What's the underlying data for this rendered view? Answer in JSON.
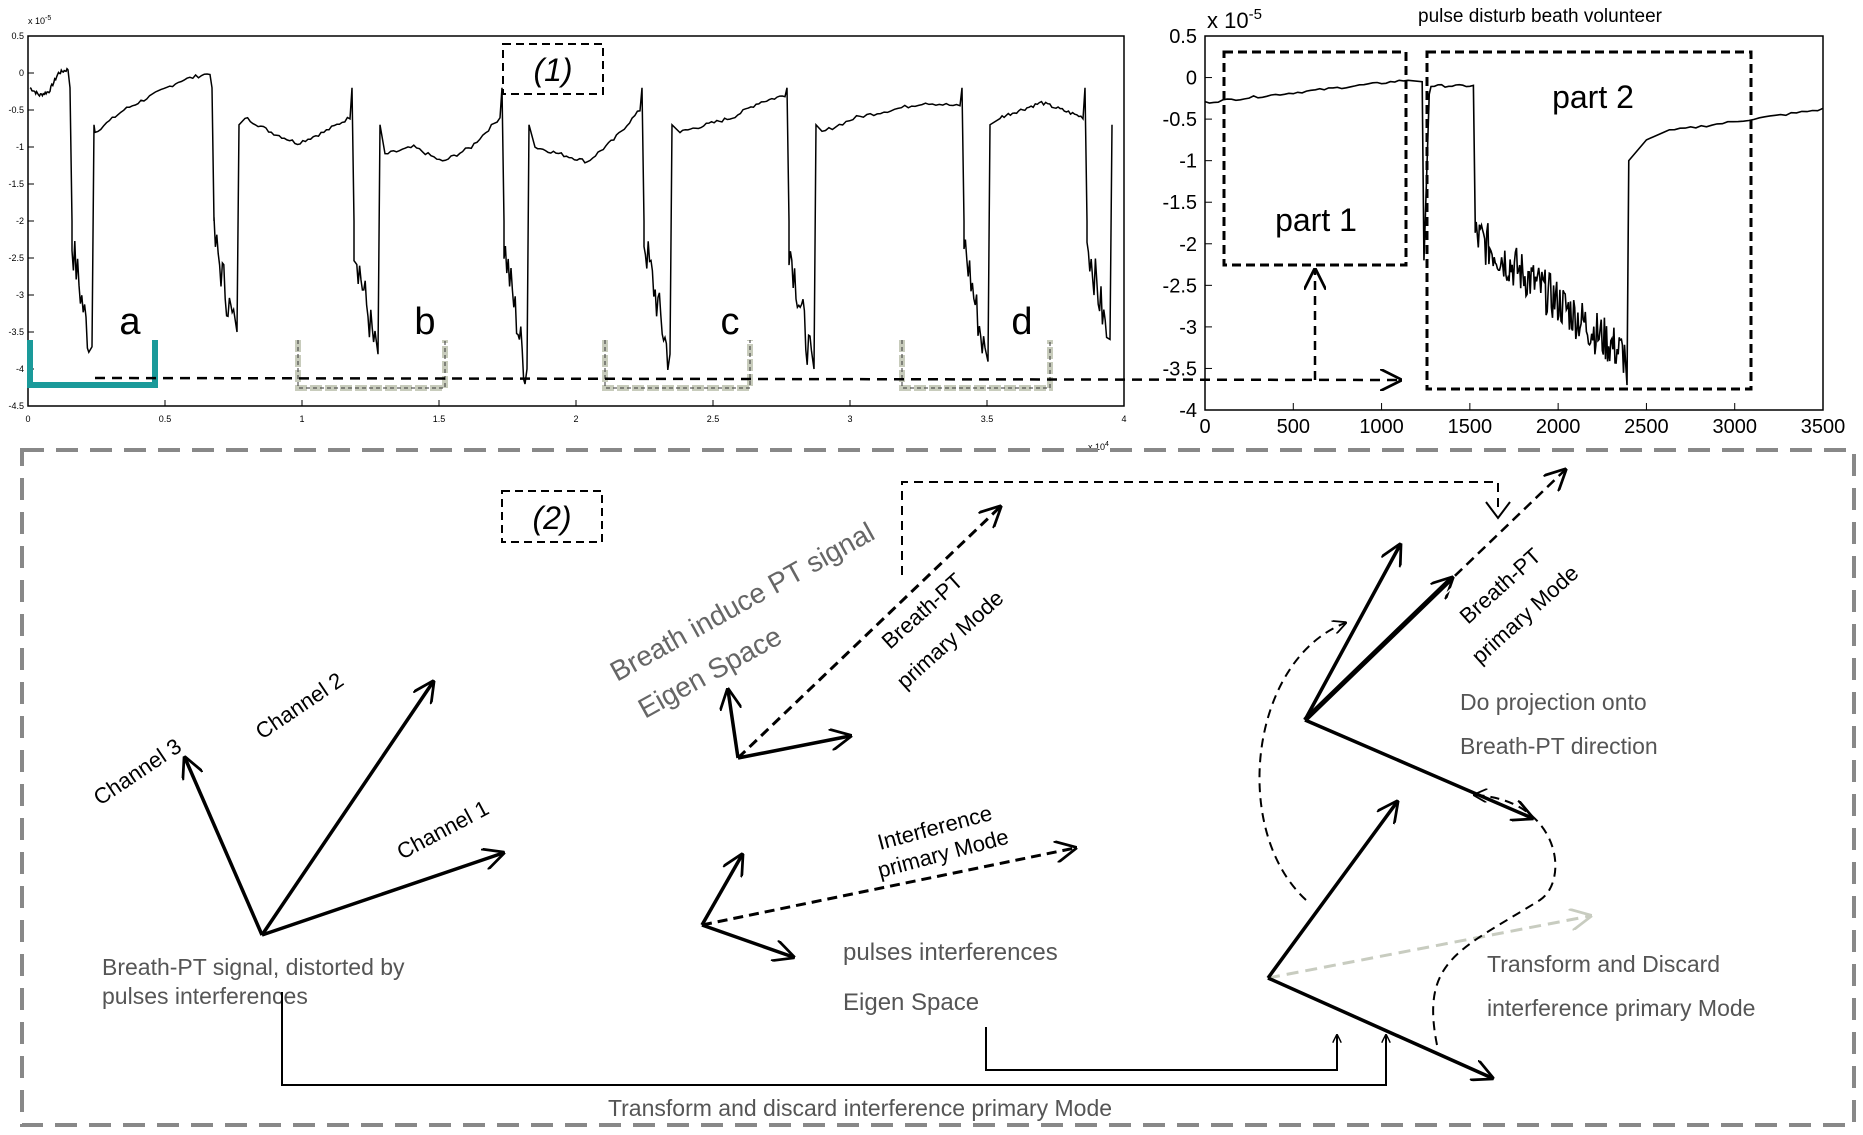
{
  "panel1": {
    "label": "(1)",
    "exponent": "x 10",
    "exponent_power": "-5",
    "x_exponent": "x 10",
    "x_exponent_power": "4",
    "y_ticks": [
      "0.5",
      "0",
      "-0.5",
      "-1",
      "-1.5",
      "-2",
      "-2.5",
      "-3",
      "-3.5",
      "-4",
      "-4.5"
    ],
    "x_ticks": [
      "0",
      "0.5",
      "1",
      "1.5",
      "2",
      "2.5",
      "3",
      "3.5",
      "4"
    ],
    "segments": [
      "a",
      "b",
      "c",
      "d"
    ]
  },
  "panel_right": {
    "title": "pulse disturb beath volunteer",
    "exponent": "x 10",
    "exponent_power": "-5",
    "y_ticks": [
      "0.5",
      "0",
      "-0.5",
      "-1",
      "-1.5",
      "-2",
      "-2.5",
      "-3",
      "-3.5",
      "-4"
    ],
    "x_ticks": [
      "0",
      "500",
      "1000",
      "1500",
      "2000",
      "2500",
      "3000",
      "3500"
    ],
    "part1": "part 1",
    "part2": "part 2"
  },
  "panel2": {
    "label": "(2)",
    "channel1": "Channel 1",
    "channel2": "Channel 2",
    "channel3": "Channel 3",
    "breath_pt_signal_line1": "Breath-PT signal, distorted by",
    "breath_pt_signal_line2": "pulses interferences",
    "breath_induce": "Breath induce PT signal",
    "eigen_space_top": "Eigen Space",
    "breath_pt_primary_line1": "Breath-PT",
    "breath_pt_primary_line2": "primary Mode",
    "interference_primary_line1": "Interference",
    "interference_primary_line2": "primary Mode",
    "pulses_interferences": "pulses interferences",
    "eigen_space_bottom": "Eigen Space",
    "breath_pt_primary_right_line1": "Breath-PT",
    "breath_pt_primary_right_line2": "primary Mode",
    "do_projection_line1": "Do projection onto",
    "do_projection_line2": "Breath-PT direction",
    "transform_discard_line1": "Transform and Discard",
    "transform_discard_line2": "interference primary Mode",
    "bottom_caption": "Transform and discard interference primary Mode"
  },
  "colors": {
    "segment_a": "#1a9a9a",
    "segment_other": "#c8ccbc",
    "faded_arrow": "#c8ccc0",
    "frame_dash": "#888888"
  }
}
